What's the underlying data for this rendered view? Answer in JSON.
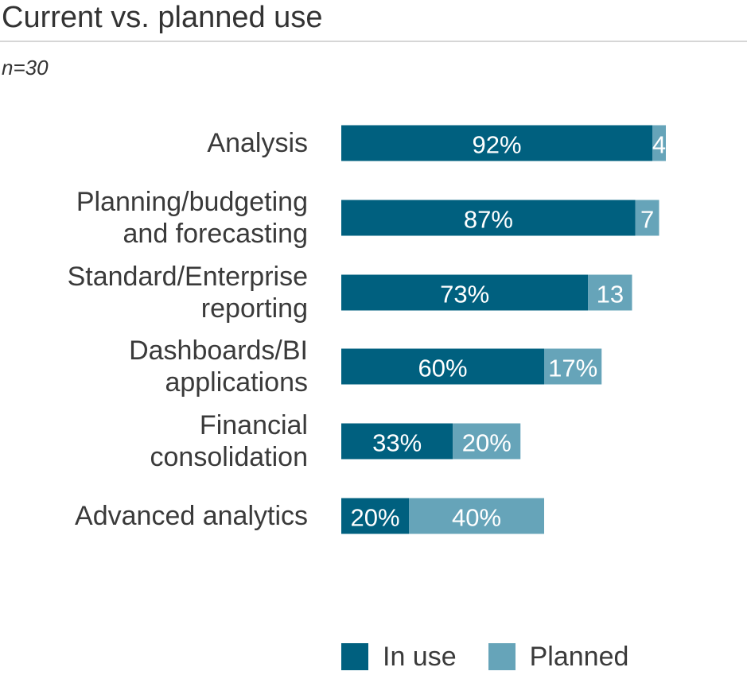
{
  "title": "Current vs. planned use",
  "subtitle": "n=30",
  "colors": {
    "in_use": "#00607f",
    "planned": "#66a4b9"
  },
  "chart_data": {
    "type": "bar",
    "orientation": "horizontal",
    "stacked": true,
    "categories": [
      [
        "Analysis"
      ],
      [
        "Planning/budgeting",
        "and forecasting"
      ],
      [
        "Standard/Enterprise",
        "reporting"
      ],
      [
        "Dashboards/BI",
        "applications"
      ],
      [
        "Financial",
        "consolidation"
      ],
      [
        "Advanced analytics"
      ]
    ],
    "series": [
      {
        "name": "In use",
        "values": [
          92,
          87,
          73,
          60,
          33,
          20
        ],
        "labels": [
          "92%",
          "87%",
          "73%",
          "60%",
          "33%",
          "20%"
        ]
      },
      {
        "name": "Planned",
        "values": [
          4,
          7,
          13,
          17,
          20,
          40
        ],
        "labels": [
          "4",
          "7",
          "13",
          "17%",
          "20%",
          "40%"
        ]
      }
    ],
    "xlim": [
      0,
      100
    ],
    "grid": false,
    "legend": "bottom"
  }
}
